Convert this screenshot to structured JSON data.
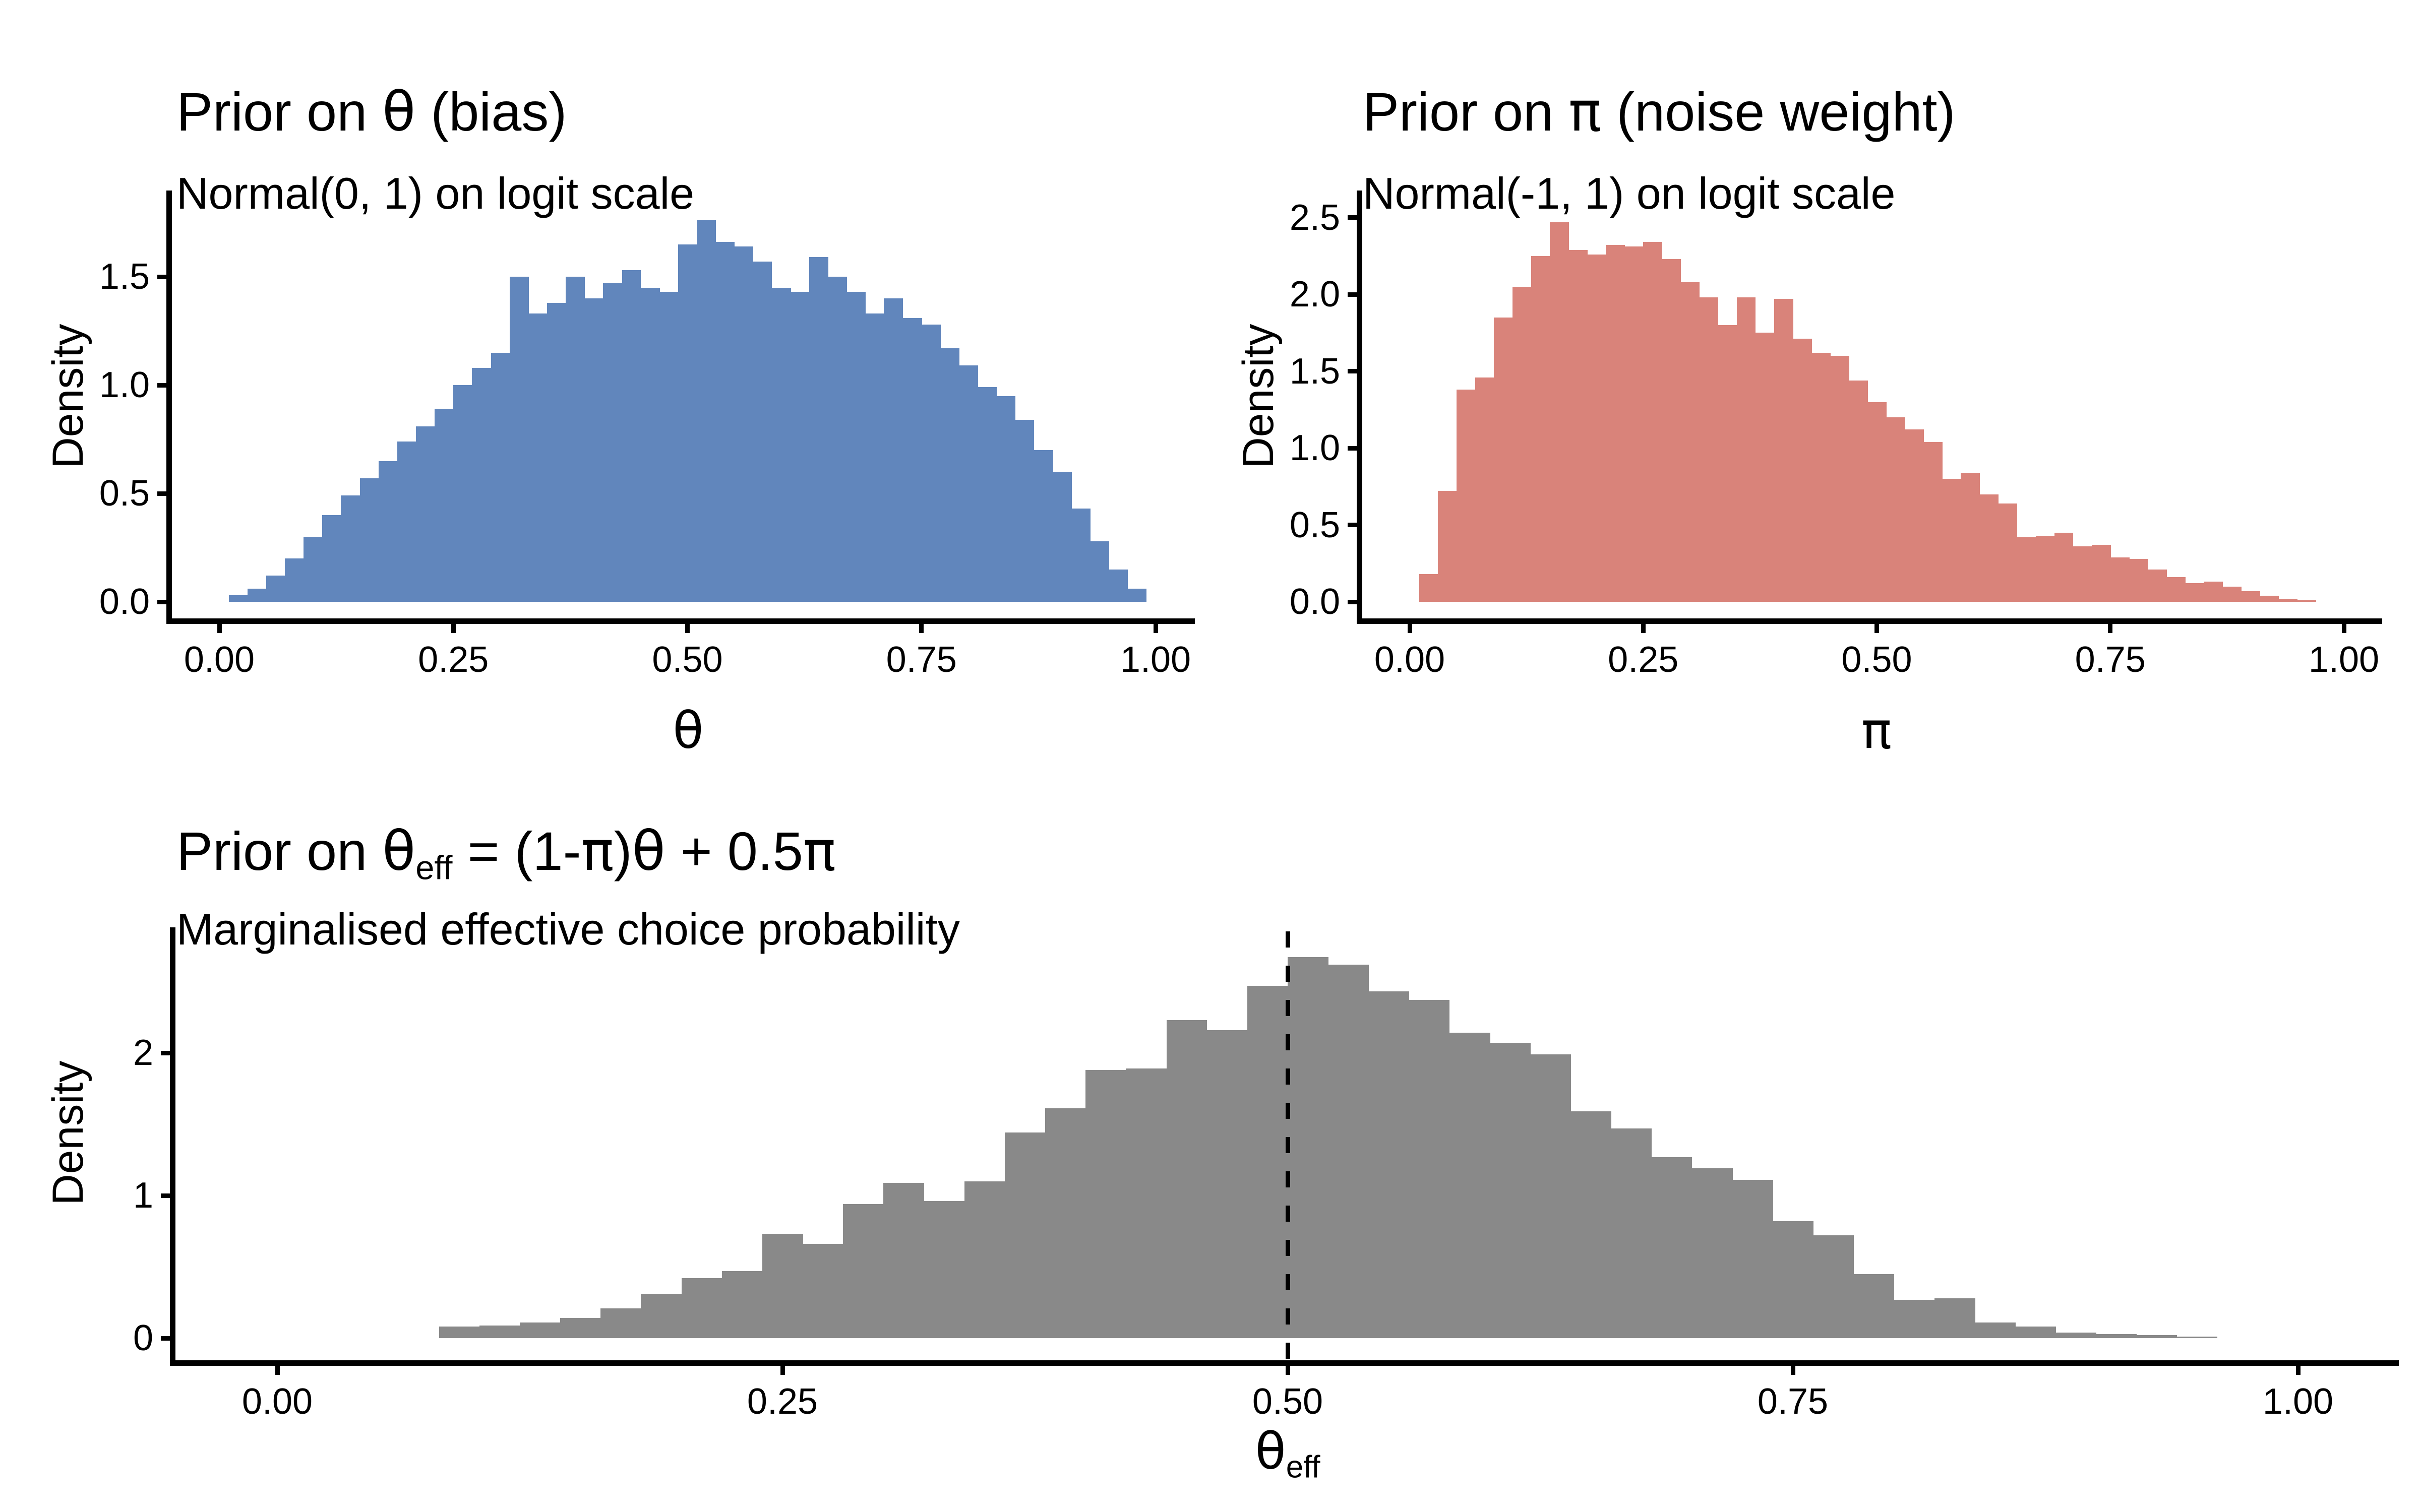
{
  "figure": {
    "background": "#FFFFFF"
  },
  "chart_data": [
    {
      "type": "histogram",
      "panel": "top-left",
      "title": "Prior on θ (bias)",
      "title_parts": [
        {
          "t": "Prior on "
        },
        {
          "t": "θ",
          "greek": true
        },
        {
          "t": " (bias)"
        }
      ],
      "subtitle": "Normal(0, 1) on logit scale",
      "xlabel": "θ",
      "xlabel_parts": [
        {
          "t": "θ",
          "greek": true
        }
      ],
      "ylabel": "Density",
      "fill_color": "#6186BC",
      "xlim": [
        0,
        1
      ],
      "ylim": [
        0,
        1.8
      ],
      "grid": false,
      "legend": "none",
      "bin_start": 0.01,
      "bin_width": 0.02,
      "x_ticks": [
        {
          "v": 0,
          "label": "0.00"
        },
        {
          "v": 0.25,
          "label": "0.25"
        },
        {
          "v": 0.5,
          "label": "0.50"
        },
        {
          "v": 0.75,
          "label": "0.75"
        },
        {
          "v": 1,
          "label": "1.00"
        }
      ],
      "y_ticks": [
        {
          "v": 0,
          "label": "0.0"
        },
        {
          "v": 0.5,
          "label": "0.5"
        },
        {
          "v": 1,
          "label": "1.0"
        },
        {
          "v": 1.5,
          "label": "1.5"
        }
      ],
      "densities": [
        0.03,
        0.06,
        0.12,
        0.2,
        0.3,
        0.4,
        0.49,
        0.57,
        0.65,
        0.74,
        0.81,
        0.89,
        1.0,
        1.08,
        1.15,
        1.5,
        1.33,
        1.38,
        1.5,
        1.4,
        1.47,
        1.53,
        1.45,
        1.43,
        1.65,
        1.76,
        1.66,
        1.64,
        1.57,
        1.45,
        1.43,
        1.59,
        1.5,
        1.43,
        1.33,
        1.4,
        1.31,
        1.28,
        1.17,
        1.09,
        0.99,
        0.95,
        0.84,
        0.7,
        0.6,
        0.43,
        0.28,
        0.15,
        0.06
      ]
    },
    {
      "type": "histogram",
      "panel": "top-right",
      "title": "Prior on π (noise weight)",
      "title_parts": [
        {
          "t": "Prior on "
        },
        {
          "t": "π",
          "greek": true
        },
        {
          "t": " (noise weight)"
        }
      ],
      "subtitle": "Normal(-1, 1) on logit scale",
      "xlabel": "π",
      "xlabel_parts": [
        {
          "t": "π",
          "greek": true
        }
      ],
      "ylabel": "Density",
      "fill_color": "#D9837A",
      "xlim": [
        0,
        1
      ],
      "ylim": [
        0,
        2.6
      ],
      "grid": false,
      "legend": "none",
      "bin_start": 0.01,
      "bin_width": 0.02,
      "x_ticks": [
        {
          "v": 0,
          "label": "0.00"
        },
        {
          "v": 0.25,
          "label": "0.25"
        },
        {
          "v": 0.5,
          "label": "0.50"
        },
        {
          "v": 0.75,
          "label": "0.75"
        },
        {
          "v": 1,
          "label": "1.00"
        }
      ],
      "y_ticks": [
        {
          "v": 0,
          "label": "0.0"
        },
        {
          "v": 0.5,
          "label": "0.5"
        },
        {
          "v": 1,
          "label": "1.0"
        },
        {
          "v": 1.5,
          "label": "1.5"
        },
        {
          "v": 2,
          "label": "2.0"
        },
        {
          "v": 2.5,
          "label": "2.5"
        }
      ],
      "densities": [
        0.18,
        0.72,
        1.38,
        1.46,
        1.85,
        2.05,
        2.25,
        2.47,
        2.29,
        2.26,
        2.32,
        2.31,
        2.34,
        2.23,
        2.08,
        1.98,
        1.8,
        1.98,
        1.75,
        1.97,
        1.71,
        1.62,
        1.6,
        1.44,
        1.3,
        1.2,
        1.12,
        1.04,
        0.8,
        0.84,
        0.7,
        0.64,
        0.42,
        0.43,
        0.45,
        0.36,
        0.37,
        0.29,
        0.28,
        0.21,
        0.16,
        0.12,
        0.13,
        0.1,
        0.07,
        0.04,
        0.02,
        0.01
      ]
    },
    {
      "type": "histogram",
      "panel": "bottom",
      "title": "Prior on θeff = (1-π)θ + 0.5π",
      "title_parts": [
        {
          "t": "Prior on "
        },
        {
          "t": "θ",
          "greek": true
        },
        {
          "t": "eff",
          "sub": true
        },
        {
          "t": " = (1-"
        },
        {
          "t": "π",
          "greek": true
        },
        {
          "t": ")"
        },
        {
          "t": "θ",
          "greek": true
        },
        {
          "t": " + 0.5"
        },
        {
          "t": "π",
          "greek": true
        }
      ],
      "subtitle": "Marginalised effective choice probability",
      "xlabel": "θeff",
      "xlabel_parts": [
        {
          "t": "θ",
          "greek": true
        },
        {
          "t": "eff",
          "sub": true
        }
      ],
      "ylabel": "Density",
      "fill_color": "#898989",
      "xlim": [
        0,
        1
      ],
      "ylim": [
        0,
        2.8
      ],
      "grid": false,
      "legend": "none",
      "bin_start": 0.08,
      "bin_width": 0.02,
      "vline": {
        "x": 0.5,
        "style": "dashed",
        "color": "#000000"
      },
      "x_ticks": [
        {
          "v": 0,
          "label": "0.00"
        },
        {
          "v": 0.25,
          "label": "0.25"
        },
        {
          "v": 0.5,
          "label": "0.50"
        },
        {
          "v": 0.75,
          "label": "0.75"
        },
        {
          "v": 1,
          "label": "1.00"
        }
      ],
      "y_ticks": [
        {
          "v": 0,
          "label": "0"
        },
        {
          "v": 1,
          "label": "1"
        },
        {
          "v": 2,
          "label": "2"
        }
      ],
      "densities": [
        0.08,
        0.09,
        0.11,
        0.14,
        0.21,
        0.31,
        0.42,
        0.47,
        0.73,
        0.66,
        0.94,
        1.09,
        0.96,
        1.1,
        1.44,
        1.61,
        1.88,
        1.89,
        2.23,
        2.16,
        2.47,
        2.67,
        2.62,
        2.43,
        2.37,
        2.14,
        2.07,
        1.99,
        1.59,
        1.47,
        1.27,
        1.19,
        1.11,
        0.82,
        0.72,
        0.45,
        0.27,
        0.28,
        0.11,
        0.08,
        0.04,
        0.03,
        0.02,
        0.01
      ]
    }
  ]
}
